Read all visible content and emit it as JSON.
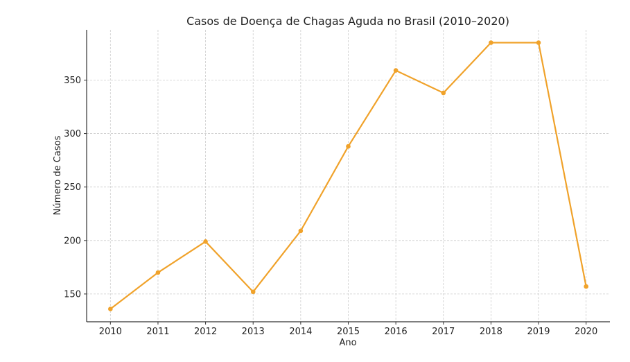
{
  "chart_data": {
    "type": "line",
    "title": "Casos de Doença de Chagas Aguda no Brasil (2010–2020)",
    "xlabel": "Ano",
    "ylabel": "Número de Casos",
    "x": [
      2010,
      2011,
      2012,
      2013,
      2014,
      2015,
      2016,
      2017,
      2018,
      2019,
      2020
    ],
    "series": [
      {
        "name": "Casos",
        "values": [
          136,
          170,
          199,
          152,
          209,
          288,
          359,
          338,
          385,
          385,
          157
        ],
        "color": "#f0a22a"
      }
    ],
    "xticks": [
      "2010",
      "2011",
      "2012",
      "2013",
      "2014",
      "2015",
      "2016",
      "2017",
      "2018",
      "2019",
      "2020"
    ],
    "yticks": [
      "150",
      "200",
      "250",
      "300",
      "350"
    ],
    "xlim": [
      2009.5,
      2020.5
    ],
    "ylim": [
      124,
      397
    ],
    "grid": true
  }
}
